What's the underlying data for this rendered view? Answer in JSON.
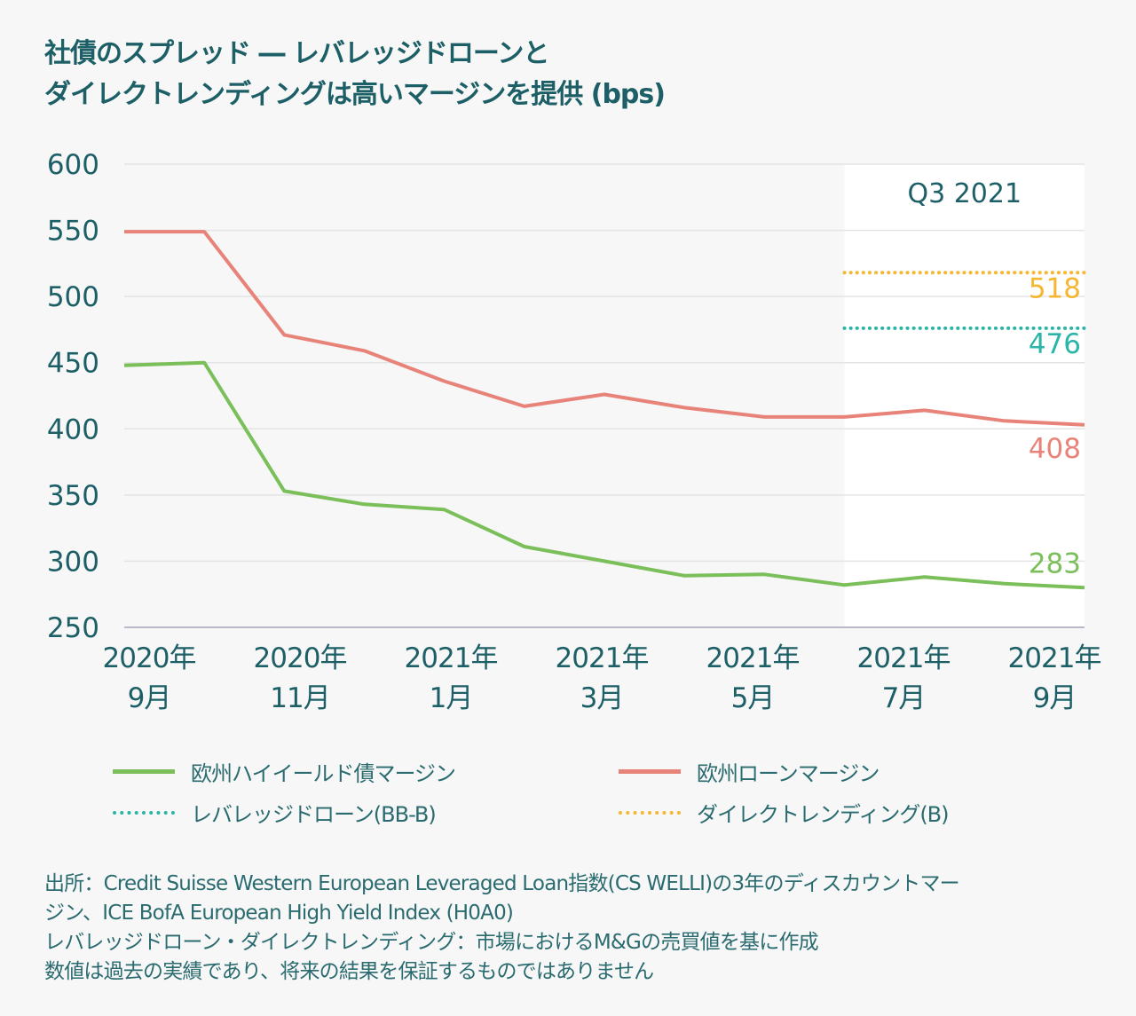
{
  "title_lines": [
    "社債のスプレッド ― レバレッジドローンと",
    "ダイレクトレンディングは高いマージンを提供 (bps)"
  ],
  "colors": {
    "title": "#1d5f66",
    "hy": "#7bbf5a",
    "loan": "#e8837a",
    "leveraged": "#2bb5a8",
    "direct": "#f5b731",
    "highlight": "#ffffff"
  },
  "chart_data": {
    "type": "line",
    "title": "社債のスプレッド ― レバレッジドローンとダイレクトレンディングは高いマージンを提供 (bps)",
    "ylim": [
      250,
      600
    ],
    "yticks": [
      "600",
      "550",
      "500",
      "450",
      "400",
      "350",
      "300",
      "250"
    ],
    "xtick_labels": [
      [
        "2020年",
        "9月"
      ],
      [
        "2020年",
        "11月"
      ],
      [
        "2021年",
        "1月"
      ],
      [
        "2021年",
        "3月"
      ],
      [
        "2021年",
        "5月"
      ],
      [
        "2021年",
        "7月"
      ],
      [
        "2021年",
        "9月"
      ]
    ],
    "x": [
      "2020-09",
      "2020-10",
      "2020-11",
      "2020-12",
      "2021-01",
      "2021-02",
      "2021-03",
      "2021-04",
      "2021-05",
      "2021-06",
      "2021-07",
      "2021-08",
      "2021-09"
    ],
    "grid": true,
    "legend_position": "bottom",
    "highlight_label": "Q3 2021",
    "series": [
      {
        "name": "欧州ハイイールド債マージン",
        "style": "solid",
        "color": "#7bbf5a",
        "values": [
          448,
          450,
          353,
          343,
          339,
          311,
          300,
          289,
          290,
          282,
          288,
          283,
          280
        ],
        "end_label": "283"
      },
      {
        "name": "欧州ローンマージン",
        "style": "solid",
        "color": "#e8837a",
        "values": [
          549,
          549,
          471,
          459,
          436,
          417,
          426,
          416,
          409,
          409,
          414,
          406,
          403
        ],
        "end_label": "408"
      },
      {
        "name": "レバレッジドローン(BB-B)",
        "style": "dotted",
        "color": "#2bb5a8",
        "q3_value": 476,
        "end_label": "476"
      },
      {
        "name": "ダイレクトレンディング(B)",
        "style": "dotted",
        "color": "#f5b731",
        "q3_value": 518,
        "end_label": "518"
      }
    ]
  },
  "notes": [
    "出所：Credit Suisse Western European Leveraged Loan指数(CS WELLI)の3年のディスカウントマー",
    "ジン、ICE BofA European High Yield Index (H0A0)",
    "レバレッジドローン・ダイレクトレンディング：市場におけるM&Gの売買値を基に作成",
    "数値は過去の実績であり、将来の結果を保証するものではありません"
  ]
}
